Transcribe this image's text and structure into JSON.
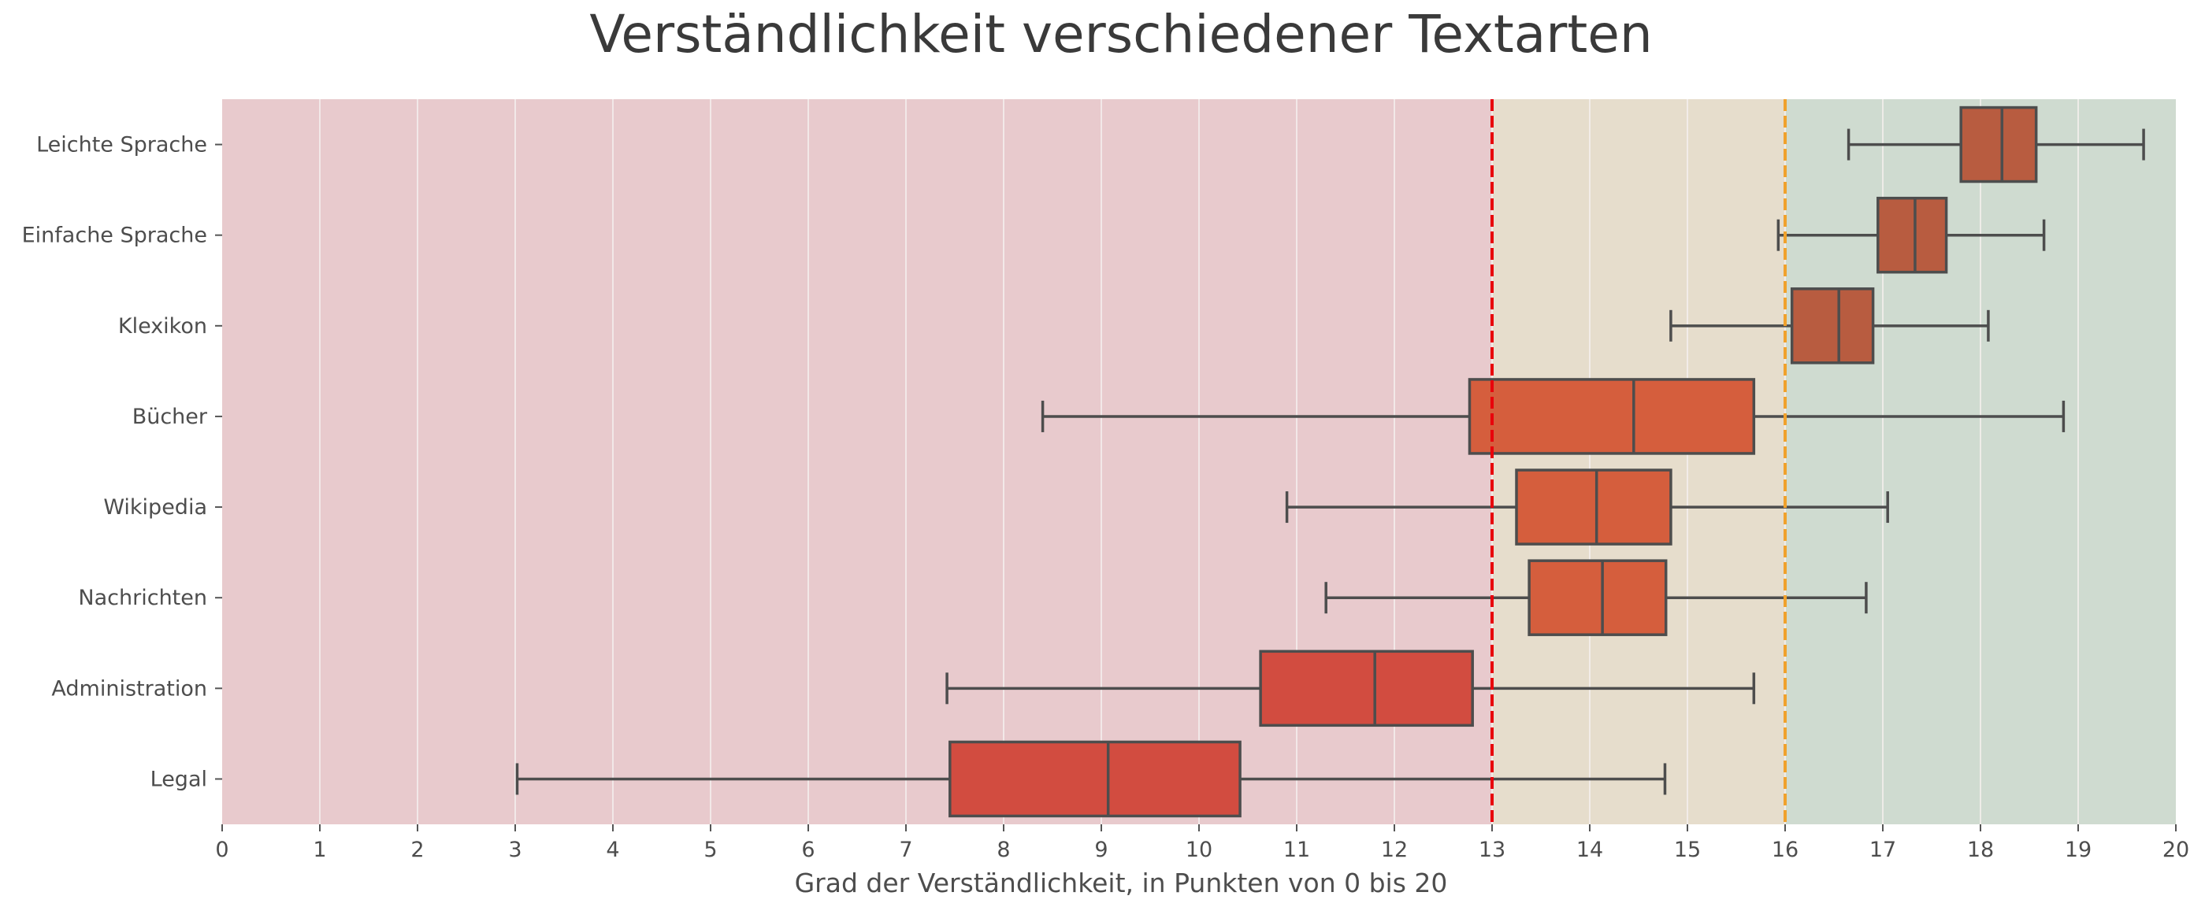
{
  "chart_data": {
    "type": "boxplot",
    "title": "Verständlichkeit verschiedener Textarten",
    "xlabel": "Grad der Verständlichkeit, in Punkten von 0 bis 20",
    "ylabel": "",
    "xlim": [
      0,
      20
    ],
    "xticks": [
      "0",
      "1",
      "2",
      "3",
      "4",
      "5",
      "6",
      "7",
      "8",
      "9",
      "10",
      "11",
      "12",
      "13",
      "14",
      "15",
      "16",
      "17",
      "18",
      "19",
      "20"
    ],
    "grid": "vertical",
    "categories": [
      "Leichte Sprache",
      "Einfache Sprache",
      "Klexikon",
      "Bücher",
      "Wikipedia",
      "Nachrichten",
      "Administration",
      "Legal"
    ],
    "boxes": [
      {
        "label": "Leichte Sprache",
        "whisker_low": 16.65,
        "q1": 17.8,
        "median": 18.22,
        "q3": 18.57,
        "whisker_high": 19.67,
        "color": "#b85c40"
      },
      {
        "label": "Einfache Sprache",
        "whisker_low": 15.93,
        "q1": 16.95,
        "median": 17.33,
        "q3": 17.65,
        "whisker_high": 18.65,
        "color": "#b85c40"
      },
      {
        "label": "Klexikon",
        "whisker_low": 14.83,
        "q1": 16.07,
        "median": 16.55,
        "q3": 16.9,
        "whisker_high": 18.08,
        "color": "#b85c40"
      },
      {
        "label": "Bücher",
        "whisker_low": 8.4,
        "q1": 12.77,
        "median": 14.45,
        "q3": 15.68,
        "whisker_high": 18.85,
        "color": "#d55e3d"
      },
      {
        "label": "Wikipedia",
        "whisker_low": 10.9,
        "q1": 13.25,
        "median": 14.07,
        "q3": 14.83,
        "whisker_high": 17.05,
        "color": "#d55e3d"
      },
      {
        "label": "Nachrichten",
        "whisker_low": 11.3,
        "q1": 13.38,
        "median": 14.13,
        "q3": 14.78,
        "whisker_high": 16.83,
        "color": "#d55e3d"
      },
      {
        "label": "Administration",
        "whisker_low": 7.42,
        "q1": 10.63,
        "median": 11.8,
        "q3": 12.8,
        "whisker_high": 15.68,
        "color": "#d24c40"
      },
      {
        "label": "Legal",
        "whisker_low": 3.02,
        "q1": 7.45,
        "median": 9.07,
        "q3": 10.42,
        "whisker_high": 14.77,
        "color": "#d24c40"
      }
    ],
    "regions": [
      {
        "from": 0,
        "to": 13,
        "color": "#e8cacd"
      },
      {
        "from": 13,
        "to": 16,
        "color": "#e6ddcc"
      },
      {
        "from": 16,
        "to": 20,
        "color": "#cfdbd0"
      }
    ],
    "reference_lines": [
      {
        "x": 13,
        "color": "#e8000b",
        "style": "dashed"
      },
      {
        "x": 16,
        "color": "#f0a12c",
        "style": "dashed"
      }
    ],
    "colors": {
      "box_edge": "#4d4d4d",
      "grid": "#f5f0ef"
    }
  }
}
